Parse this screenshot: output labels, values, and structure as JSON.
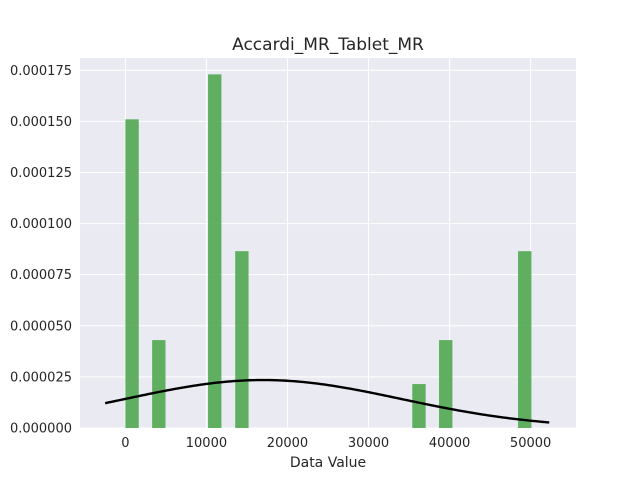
{
  "chart_data": {
    "type": "bar",
    "title": "Accardi_MR_Tablet_MR",
    "xlabel": "Data Value",
    "ylabel": "",
    "xlim": [
      -5600,
      55600
    ],
    "ylim": [
      0,
      0.000181
    ],
    "xticks": [
      0,
      10000,
      20000,
      30000,
      40000,
      50000
    ],
    "xtick_labels": [
      "0",
      "10000",
      "20000",
      "30000",
      "40000",
      "50000"
    ],
    "yticks": [
      0,
      2.5e-05,
      5e-05,
      7.5e-05,
      0.0001,
      0.000125,
      0.00015,
      0.000175
    ],
    "ytick_labels": [
      "0.000000",
      "0.000025",
      "0.000050",
      "0.000075",
      "0.000100",
      "0.000125",
      "0.000150",
      "0.000175"
    ],
    "grid": true,
    "legend": "none",
    "histogram": {
      "bin_width": 1650,
      "bins": [
        {
          "x0": 0,
          "density": 0.000151
        },
        {
          "x0": 3300,
          "density": 4.3e-05
        },
        {
          "x0": 10200,
          "density": 0.000173
        },
        {
          "x0": 13550,
          "density": 8.65e-05
        },
        {
          "x0": 35400,
          "density": 2.15e-05
        },
        {
          "x0": 38700,
          "density": 4.3e-05
        },
        {
          "x0": 48450,
          "density": 8.65e-05
        }
      ],
      "color": "#4ca64c"
    },
    "curve": {
      "type": "normal_pdf",
      "mean": 17000,
      "std": 17000,
      "x_range": [
        -2500,
        52300
      ],
      "color": "#000000"
    },
    "background": "#eaeaf2",
    "grid_color": "#ffffff"
  }
}
